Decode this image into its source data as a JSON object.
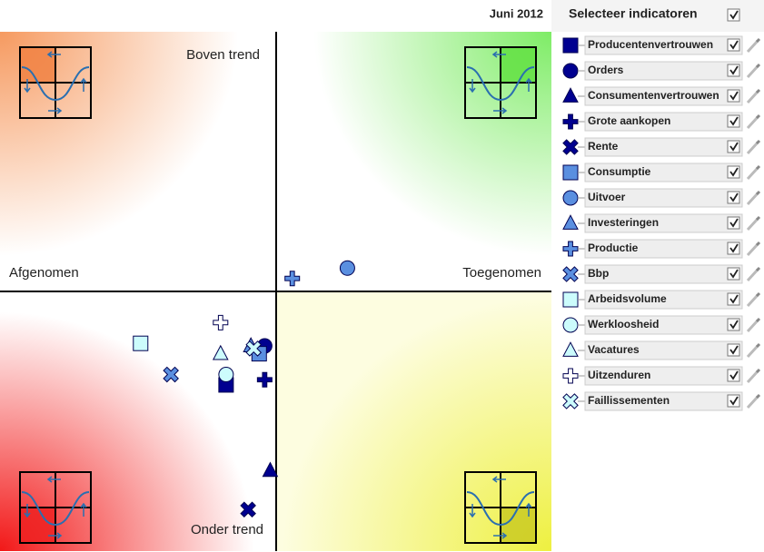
{
  "header": {
    "period": "Juni 2012",
    "select_label": "Selecteer indicatoren",
    "select_all": true
  },
  "chart_data": {
    "type": "scatter",
    "annotations": [
      "Boven trend",
      "Afgenomen",
      "Toegenomen",
      "Onder trend"
    ],
    "xlim": [
      -1,
      1
    ],
    "ylim": [
      -1,
      1
    ],
    "series": [
      {
        "name": "Producentenvertrouwen",
        "color": "#000090",
        "shape": "square",
        "checked": true,
        "x": [
          -0.18
        ],
        "values": [
          -0.36
        ]
      },
      {
        "name": "Orders",
        "color": "#000090",
        "shape": "circle",
        "checked": true,
        "x": [
          -0.04
        ],
        "values": [
          -0.21
        ]
      },
      {
        "name": "Consumentenvertrouwen",
        "color": "#000090",
        "shape": "triangle",
        "checked": true,
        "x": [
          -0.02
        ],
        "values": [
          -0.69
        ]
      },
      {
        "name": "Grote aankopen",
        "color": "#000090",
        "shape": "plus",
        "checked": true,
        "x": [
          -0.04
        ],
        "values": [
          -0.34
        ]
      },
      {
        "name": "Rente",
        "color": "#000090",
        "shape": "cross",
        "checked": true,
        "x": [
          -0.1
        ],
        "values": [
          -0.84
        ]
      },
      {
        "name": "Consumptie",
        "color": "#5a8fe0",
        "shape": "square",
        "checked": true,
        "x": [
          -0.06
        ],
        "values": [
          -0.24
        ]
      },
      {
        "name": "Uitvoer",
        "color": "#5a8fe0",
        "shape": "circle",
        "checked": true,
        "x": [
          0.26
        ],
        "values": [
          0.09
        ]
      },
      {
        "name": "Investeringen",
        "color": "#5a8fe0",
        "shape": "triangle",
        "checked": true,
        "x": [
          -0.09
        ],
        "values": [
          -0.21
        ]
      },
      {
        "name": "Productie",
        "color": "#5a8fe0",
        "shape": "plus",
        "checked": true,
        "x": [
          0.06
        ],
        "values": [
          0.05
        ]
      },
      {
        "name": "Bbp",
        "color": "#5a8fe0",
        "shape": "cross",
        "checked": true,
        "x": [
          -0.38
        ],
        "values": [
          -0.32
        ]
      },
      {
        "name": "Arbeidsvolume",
        "color": "#ccfcfc",
        "shape": "square",
        "checked": true,
        "x": [
          -0.49
        ],
        "values": [
          -0.2
        ]
      },
      {
        "name": "Werkloosheid",
        "color": "#ccfcfc",
        "shape": "circle",
        "checked": true,
        "x": [
          -0.18
        ],
        "values": [
          -0.32
        ]
      },
      {
        "name": "Vacatures",
        "color": "#ccfcfc",
        "shape": "triangle",
        "checked": true,
        "x": [
          -0.2
        ],
        "values": [
          -0.24
        ]
      },
      {
        "name": "Uitzenduren",
        "color": "#ffffff",
        "shape": "plus",
        "checked": true,
        "x": [
          -0.2
        ],
        "values": [
          -0.12
        ]
      },
      {
        "name": "Faillissementen",
        "color": "#ccfcfc",
        "shape": "cross",
        "checked": true,
        "x": [
          -0.08
        ],
        "values": [
          -0.22
        ]
      }
    ]
  }
}
